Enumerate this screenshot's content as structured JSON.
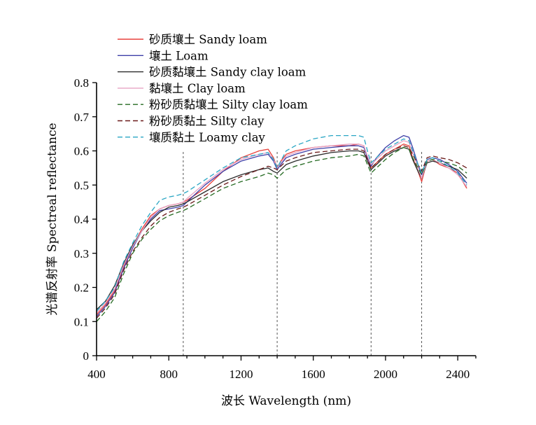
{
  "chart_data": {
    "type": "line",
    "title": "",
    "xlabel": "波长 Wavelength (nm)",
    "ylabel": "光谱反射率 Spectreal reflectance",
    "xlim": [
      400,
      2500
    ],
    "ylim": [
      0,
      0.8
    ],
    "xticks": [
      400,
      800,
      1200,
      1600,
      2000,
      2400
    ],
    "yticks": [
      0,
      0.1,
      0.2,
      0.3,
      0.4,
      0.5,
      0.6,
      0.7,
      0.8
    ],
    "grid": false,
    "legend_position": "top-left",
    "absorption_markers": [
      880,
      1400,
      1920,
      2200
    ],
    "x": [
      400,
      450,
      500,
      550,
      600,
      650,
      700,
      750,
      800,
      850,
      880,
      900,
      1000,
      1100,
      1200,
      1300,
      1350,
      1380,
      1400,
      1420,
      1450,
      1500,
      1600,
      1700,
      1800,
      1850,
      1880,
      1900,
      1920,
      1950,
      2000,
      2050,
      2100,
      2130,
      2150,
      2180,
      2200,
      2230,
      2260,
      2300,
      2350,
      2400,
      2450
    ],
    "series": [
      {
        "name": "砂质壤土 Sandy loam",
        "color": "#e8413b",
        "dash": "",
        "values": [
          0.12,
          0.15,
          0.19,
          0.26,
          0.32,
          0.37,
          0.41,
          0.43,
          0.44,
          0.445,
          0.45,
          0.455,
          0.49,
          0.54,
          0.58,
          0.6,
          0.605,
          0.58,
          0.55,
          0.57,
          0.59,
          0.6,
          0.61,
          0.615,
          0.615,
          0.62,
          0.615,
          0.58,
          0.55,
          0.565,
          0.59,
          0.605,
          0.62,
          0.615,
          0.58,
          0.54,
          0.51,
          0.57,
          0.575,
          0.56,
          0.55,
          0.535,
          0.49
        ]
      },
      {
        "name": "壤土 Loam",
        "color": "#3e3fa8",
        "dash": "",
        "values": [
          0.115,
          0.145,
          0.185,
          0.255,
          0.315,
          0.365,
          0.4,
          0.425,
          0.43,
          0.435,
          0.44,
          0.45,
          0.5,
          0.54,
          0.57,
          0.585,
          0.59,
          0.57,
          0.545,
          0.56,
          0.58,
          0.59,
          0.605,
          0.61,
          0.615,
          0.615,
          0.61,
          0.58,
          0.555,
          0.58,
          0.61,
          0.63,
          0.645,
          0.64,
          0.61,
          0.56,
          0.53,
          0.575,
          0.58,
          0.575,
          0.56,
          0.54,
          0.505
        ]
      },
      {
        "name": "砂质黏壤土 Sandy clay loam",
        "color": "#2b2b2b",
        "dash": "",
        "values": [
          0.135,
          0.16,
          0.205,
          0.27,
          0.325,
          0.365,
          0.395,
          0.42,
          0.435,
          0.44,
          0.445,
          0.45,
          0.48,
          0.51,
          0.53,
          0.545,
          0.55,
          0.54,
          0.535,
          0.545,
          0.56,
          0.57,
          0.585,
          0.595,
          0.6,
          0.6,
          0.595,
          0.57,
          0.545,
          0.56,
          0.585,
          0.6,
          0.61,
          0.605,
          0.575,
          0.54,
          0.52,
          0.565,
          0.57,
          0.565,
          0.555,
          0.545,
          0.52
        ]
      },
      {
        "name": "黏壤土 Clay loam",
        "color": "#e6a3c4",
        "dash": "",
        "values": [
          0.125,
          0.155,
          0.195,
          0.265,
          0.32,
          0.365,
          0.405,
          0.43,
          0.44,
          0.445,
          0.45,
          0.46,
          0.505,
          0.545,
          0.575,
          0.59,
          0.595,
          0.575,
          0.55,
          0.565,
          0.585,
          0.595,
          0.61,
          0.615,
          0.62,
          0.62,
          0.615,
          0.585,
          0.56,
          0.575,
          0.6,
          0.615,
          0.63,
          0.625,
          0.595,
          0.55,
          0.52,
          0.57,
          0.575,
          0.565,
          0.55,
          0.53,
          0.495
        ]
      },
      {
        "name": "粉砂质黏壤土 Silty clay loam",
        "color": "#256b22",
        "dash": "7,4",
        "values": [
          0.1,
          0.13,
          0.17,
          0.24,
          0.3,
          0.34,
          0.37,
          0.395,
          0.41,
          0.42,
          0.425,
          0.43,
          0.46,
          0.49,
          0.51,
          0.525,
          0.535,
          0.53,
          0.52,
          0.53,
          0.545,
          0.555,
          0.57,
          0.58,
          0.585,
          0.59,
          0.585,
          0.56,
          0.535,
          0.55,
          0.575,
          0.595,
          0.61,
          0.605,
          0.58,
          0.55,
          0.53,
          0.57,
          0.575,
          0.57,
          0.565,
          0.555,
          0.535
        ]
      },
      {
        "name": "粉砂质黏土 Silty clay",
        "color": "#6a1a1a",
        "dash": "7,4",
        "values": [
          0.11,
          0.14,
          0.18,
          0.25,
          0.305,
          0.345,
          0.38,
          0.405,
          0.42,
          0.43,
          0.435,
          0.44,
          0.47,
          0.5,
          0.525,
          0.545,
          0.555,
          0.55,
          0.545,
          0.555,
          0.57,
          0.58,
          0.595,
          0.6,
          0.605,
          0.605,
          0.6,
          0.575,
          0.55,
          0.565,
          0.59,
          0.605,
          0.615,
          0.61,
          0.59,
          0.56,
          0.54,
          0.58,
          0.585,
          0.58,
          0.575,
          0.565,
          0.55
        ]
      },
      {
        "name": "壤质黏土 Loamy clay",
        "color": "#2aa6c4",
        "dash": "7,4",
        "values": [
          0.13,
          0.16,
          0.2,
          0.275,
          0.33,
          0.38,
          0.42,
          0.455,
          0.465,
          0.47,
          0.475,
          0.48,
          0.515,
          0.55,
          0.58,
          0.59,
          0.595,
          0.575,
          0.55,
          0.57,
          0.6,
          0.615,
          0.635,
          0.645,
          0.645,
          0.645,
          0.64,
          0.6,
          0.565,
          0.58,
          0.605,
          0.62,
          0.635,
          0.63,
          0.6,
          0.56,
          0.535,
          0.575,
          0.58,
          0.57,
          0.555,
          0.535,
          0.5
        ]
      }
    ]
  }
}
